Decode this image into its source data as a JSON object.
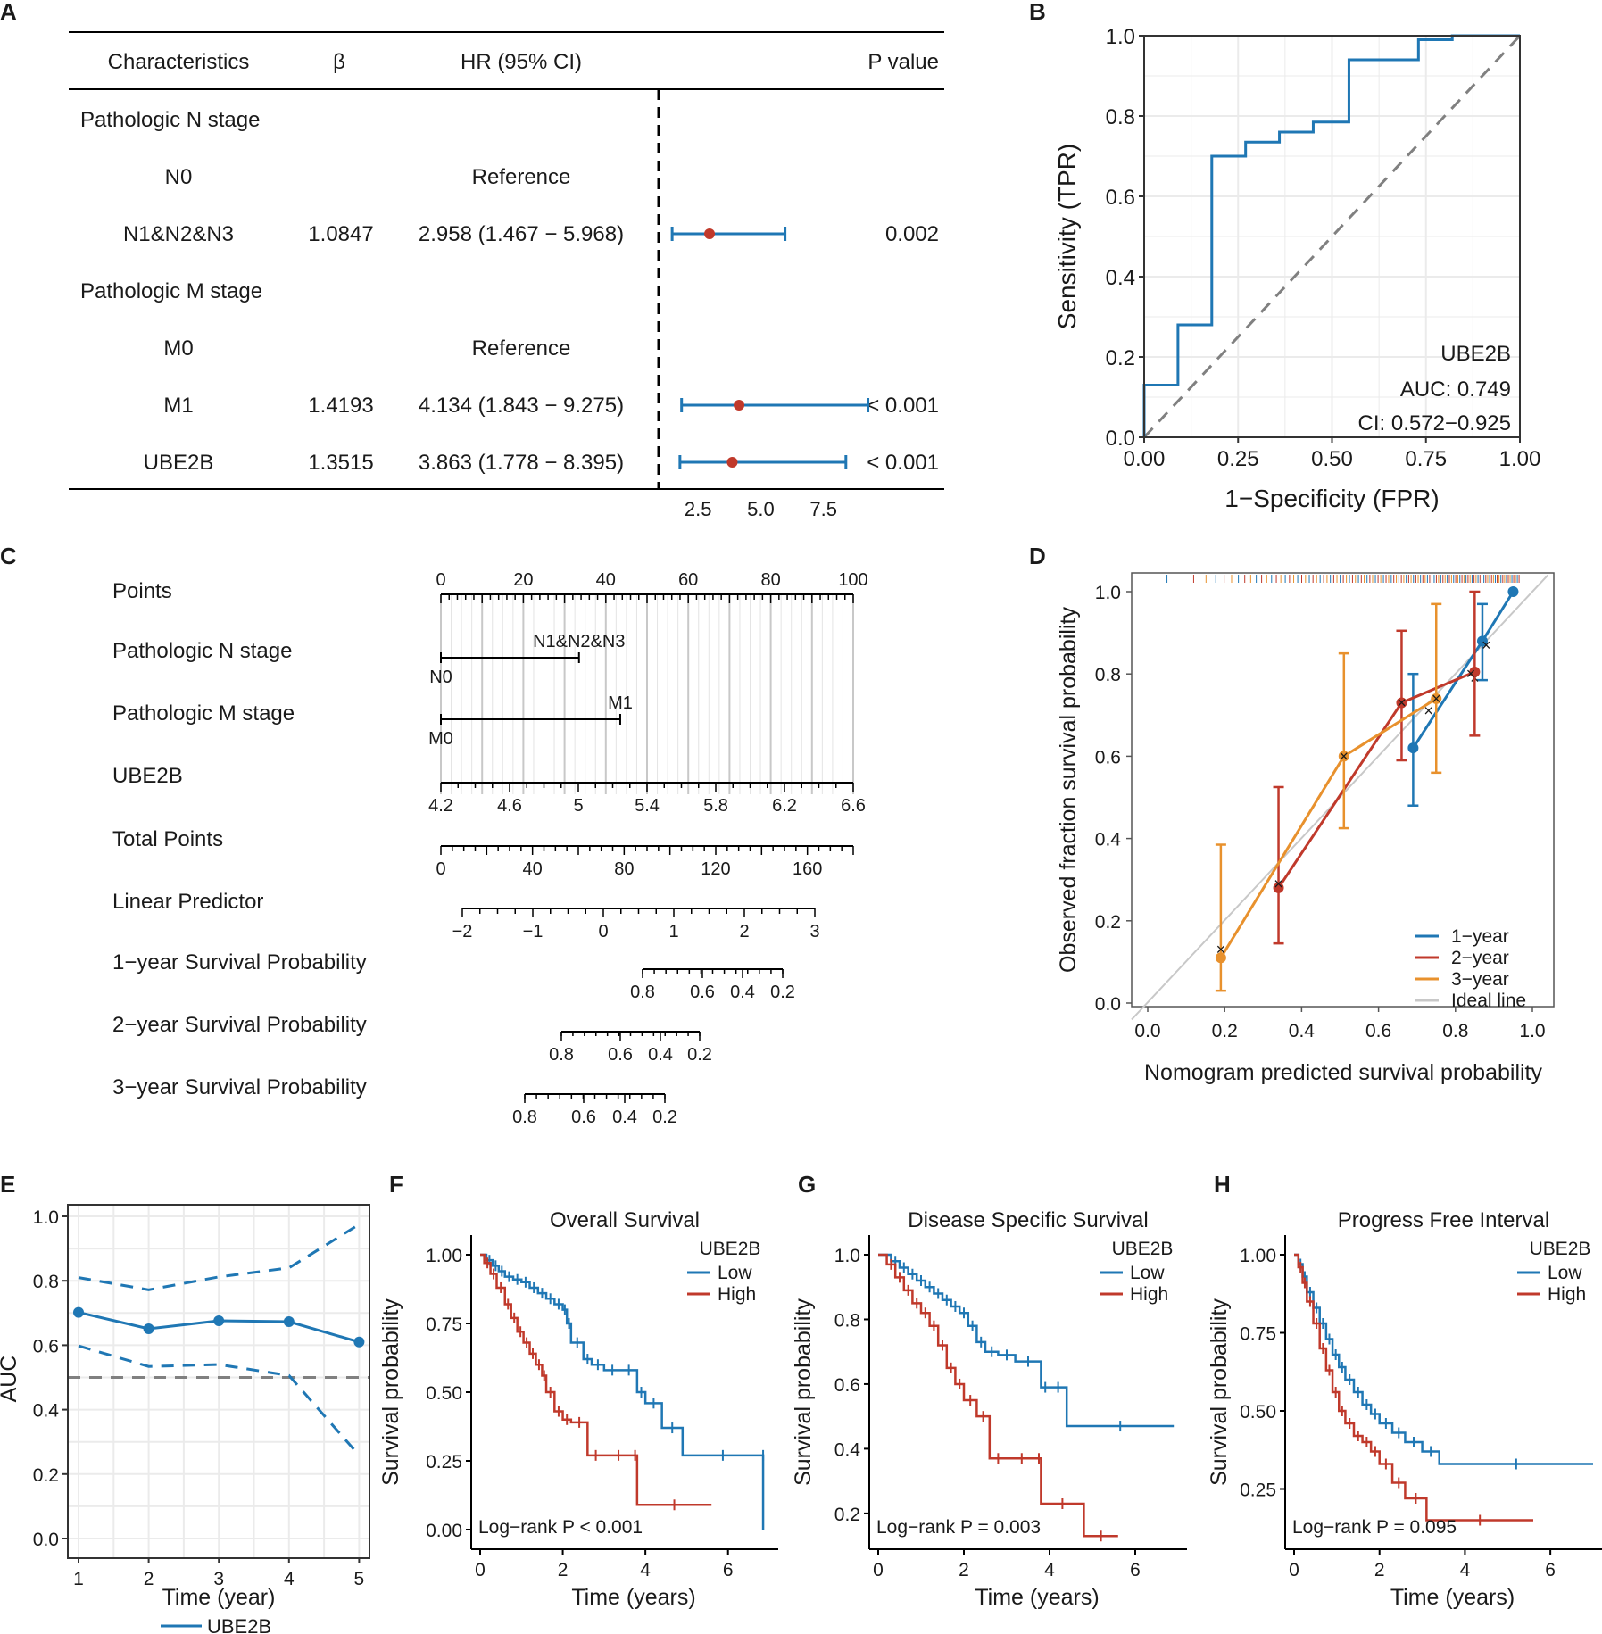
{
  "colors": {
    "blue": "#1f77b4",
    "red": "#c0392b",
    "orange": "#e8912d",
    "grey": "#808080",
    "ideal": "#c8c8c8",
    "grid": "#ebebeb"
  },
  "panels": {
    "a": "A",
    "b": "B",
    "c": "C",
    "d": "D",
    "e": "E",
    "f": "F",
    "g": "G",
    "h": "H"
  },
  "forest": {
    "headers": {
      "char": "Characteristics",
      "beta": "β",
      "hr": "HR (95% CI)",
      "p": "P value"
    },
    "rows": [
      {
        "label": "Pathologic N stage",
        "type": "group"
      },
      {
        "label": "N0",
        "type": "ref",
        "hr_text": "Reference"
      },
      {
        "label": "N1&N2&N3",
        "type": "est",
        "beta": "1.0847",
        "hr_text": "2.958 (1.467 − 5.968)",
        "p": "0.002",
        "hr": 2.958,
        "lo": 1.467,
        "hi": 5.968
      },
      {
        "label": "Pathologic M stage",
        "type": "group"
      },
      {
        "label": "M0",
        "type": "ref",
        "hr_text": "Reference"
      },
      {
        "label": "M1",
        "type": "est",
        "beta": "1.4193",
        "hr_text": "4.134 (1.843 − 9.275)",
        "p": "< 0.001",
        "hr": 4.134,
        "lo": 1.843,
        "hi": 9.275
      },
      {
        "label": "UBE2B",
        "type": "est",
        "beta": "1.3515",
        "hr_text": "3.863 (1.778 − 8.395)",
        "p": "< 0.001",
        "hr": 3.863,
        "lo": 1.778,
        "hi": 8.395
      }
    ],
    "ref_line": 1,
    "ticks": [
      "2.5",
      "5.0",
      "7.5"
    ],
    "tick_vals": [
      2.5,
      5.0,
      7.5
    ]
  },
  "chart_data": [
    {
      "panel": "B",
      "type": "line",
      "xlabel": "1−Specificity (FPR)",
      "ylabel": "Sensitivity (TPR)",
      "xlim": [
        0,
        1
      ],
      "ylim": [
        0,
        1
      ],
      "xticks": [
        "0.00",
        "0.25",
        "0.50",
        "0.75",
        "1.00"
      ],
      "yticks": [
        "0.0",
        "0.2",
        "0.4",
        "0.6",
        "0.8",
        "1.0"
      ],
      "roc": [
        [
          0,
          0
        ],
        [
          0,
          0.13
        ],
        [
          0.09,
          0.13
        ],
        [
          0.09,
          0.28
        ],
        [
          0.18,
          0.28
        ],
        [
          0.18,
          0.7
        ],
        [
          0.27,
          0.7
        ],
        [
          0.27,
          0.735
        ],
        [
          0.36,
          0.735
        ],
        [
          0.36,
          0.76
        ],
        [
          0.45,
          0.76
        ],
        [
          0.45,
          0.785
        ],
        [
          0.545,
          0.785
        ],
        [
          0.545,
          0.94
        ],
        [
          0.73,
          0.94
        ],
        [
          0.73,
          0.99
        ],
        [
          0.82,
          0.99
        ],
        [
          0.82,
          1.0
        ],
        [
          1,
          1
        ]
      ],
      "annotation": {
        "name": "UBE2B",
        "auc": "AUC: 0.749",
        "ci": "CI: 0.572−0.925"
      }
    },
    {
      "panel": "C",
      "type": "table",
      "name": "nomogram",
      "labels": [
        "Points",
        "Pathologic N stage",
        "Pathologic M stage",
        "UBE2B",
        "Total Points",
        "Linear Predictor",
        "1−year Survival Probability",
        "2−year Survival Probability",
        "3−year Survival Probability"
      ],
      "points_ticks": [
        "0",
        "20",
        "40",
        "60",
        "80",
        "100"
      ],
      "n_stage": {
        "low": "N0",
        "high": "N1&N2&N3",
        "points": 33.5
      },
      "m_stage": {
        "low": "M0",
        "high": "M1",
        "points": 43.5
      },
      "ube2b_ticks": [
        "4.2",
        "4.6",
        "5",
        "5.4",
        "5.8",
        "6.2",
        "6.6"
      ],
      "total_ticks": [
        "0",
        "40",
        "80",
        "120",
        "160"
      ],
      "lp_ticks": [
        "−2",
        "−1",
        "0",
        "1",
        "2",
        "3"
      ],
      "surv1": [
        "0.8",
        "0.6",
        "0.4",
        "0.2"
      ],
      "surv2": [
        "0.8",
        "0.6",
        "0.4",
        "0.2"
      ],
      "surv3": [
        "0.8",
        "0.6",
        "0.4",
        "0.2"
      ]
    },
    {
      "panel": "D",
      "type": "line",
      "xlabel": "Nomogram predicted survival probability",
      "ylabel": "Observed fraction survival probability",
      "xlim": [
        0,
        1
      ],
      "ylim": [
        0,
        1
      ],
      "xticks": [
        "0.0",
        "0.2",
        "0.4",
        "0.6",
        "0.8",
        "1.0"
      ],
      "yticks": [
        "0.0",
        "0.2",
        "0.4",
        "0.6",
        "0.8",
        "1.0"
      ],
      "series": [
        {
          "name": "1−year",
          "color": "blue",
          "x": [
            0.69,
            0.87,
            0.95
          ],
          "y": [
            0.62,
            0.88,
            1.0
          ],
          "lo": [
            0.48,
            0.785,
            1.0
          ],
          "hi": [
            0.8,
            0.97,
            1.0
          ],
          "xpred": [
            0.73,
            0.85,
            0.88
          ],
          "ypred": [
            0.71,
            0.79,
            0.87
          ]
        },
        {
          "name": "2−year",
          "color": "red",
          "x": [
            0.34,
            0.66,
            0.85
          ],
          "y": [
            0.28,
            0.73,
            0.805
          ],
          "lo": [
            0.145,
            0.59,
            0.65
          ],
          "hi": [
            0.525,
            0.905,
            1.0
          ],
          "xpred": [
            0.34,
            0.66,
            0.84
          ],
          "ypred": [
            0.29,
            0.73,
            0.8
          ]
        },
        {
          "name": "3−year",
          "color": "orange",
          "x": [
            0.19,
            0.51,
            0.75
          ],
          "y": [
            0.11,
            0.6,
            0.74
          ],
          "lo": [
            0.03,
            0.425,
            0.56
          ],
          "hi": [
            0.385,
            0.85,
            0.97
          ],
          "xpred": [
            0.19,
            0.51,
            0.75
          ],
          "ypred": [
            0.13,
            0.6,
            0.74
          ]
        }
      ],
      "legend": [
        "1−year",
        "2−year",
        "3−year",
        "Ideal line"
      ]
    },
    {
      "panel": "E",
      "type": "line",
      "xlabel": "Time (year)",
      "ylabel": "AUC",
      "x": [
        1,
        2,
        3,
        4,
        5
      ],
      "auc": [
        0.702,
        0.651,
        0.676,
        0.673,
        0.61
      ],
      "lower": [
        0.598,
        0.534,
        0.54,
        0.506,
        0.258
      ],
      "upper": [
        0.81,
        0.772,
        0.812,
        0.84,
        0.975
      ],
      "xticks": [
        "1",
        "2",
        "3",
        "4",
        "5"
      ],
      "yticks": [
        "0.0",
        "0.2",
        "0.4",
        "0.6",
        "0.8",
        "1.0"
      ],
      "ylim": [
        0,
        1
      ],
      "ref": 0.5,
      "legend": "UBE2B"
    },
    {
      "panel": "F",
      "type": "line",
      "title": "Overall Survival",
      "xlabel": "Time (years)",
      "ylabel": "Survival probability",
      "xlim": [
        0,
        7
      ],
      "ylim": [
        0,
        1
      ],
      "xticks": [
        "0",
        "2",
        "4",
        "6"
      ],
      "yticks": [
        "0.00",
        "0.25",
        "0.50",
        "0.75",
        "1.00"
      ],
      "ytick_vals": [
        0,
        0.25,
        0.5,
        0.75,
        1.0
      ],
      "legend_title": "UBE2B",
      "groups": [
        "Low",
        "High"
      ],
      "pvalue": "Log−rank P < 0.001",
      "low": {
        "t": [
          0,
          0.15,
          0.3,
          0.45,
          0.6,
          0.8,
          1.0,
          1.2,
          1.4,
          1.6,
          1.8,
          2.0,
          2.1,
          2.2,
          2.5,
          2.7,
          3.0,
          3.4,
          3.8,
          4.0,
          4.4,
          4.9,
          6.85,
          6.85
        ],
        "s": [
          1,
          0.98,
          0.96,
          0.94,
          0.92,
          0.91,
          0.9,
          0.88,
          0.86,
          0.84,
          0.82,
          0.8,
          0.75,
          0.68,
          0.62,
          0.6,
          0.58,
          0.58,
          0.5,
          0.46,
          0.37,
          0.27,
          0.27,
          0.0
        ]
      },
      "high": {
        "t": [
          0,
          0.1,
          0.25,
          0.4,
          0.6,
          0.75,
          0.9,
          1.05,
          1.2,
          1.35,
          1.5,
          1.6,
          1.8,
          2.0,
          2.2,
          2.6,
          3.0,
          3.7,
          3.8,
          5.6
        ],
        "s": [
          1,
          0.97,
          0.93,
          0.88,
          0.82,
          0.77,
          0.72,
          0.68,
          0.64,
          0.6,
          0.56,
          0.5,
          0.43,
          0.4,
          0.39,
          0.27,
          0.27,
          0.27,
          0.09,
          0.09
        ]
      }
    },
    {
      "panel": "G",
      "type": "line",
      "title": "Disease Specific Survival",
      "xlabel": "Time (years)",
      "ylabel": "Survival probability",
      "xlim": [
        0,
        7
      ],
      "ylim": [
        0.15,
        1
      ],
      "xticks": [
        "0",
        "2",
        "4",
        "6"
      ],
      "yticks": [
        "0.2",
        "0.4",
        "0.6",
        "0.8",
        "1.0"
      ],
      "ytick_vals": [
        0.2,
        0.4,
        0.6,
        0.8,
        1.0
      ],
      "legend_title": "UBE2B",
      "groups": [
        "Low",
        "High"
      ],
      "pvalue": "Log−rank P = 0.003",
      "low": {
        "t": [
          0,
          0.3,
          0.5,
          0.7,
          0.9,
          1.1,
          1.3,
          1.5,
          1.7,
          1.9,
          2.1,
          2.3,
          2.5,
          2.8,
          3.2,
          3.8,
          4.0,
          4.4,
          6.9
        ],
        "s": [
          1,
          0.98,
          0.96,
          0.94,
          0.92,
          0.9,
          0.88,
          0.86,
          0.84,
          0.82,
          0.78,
          0.73,
          0.7,
          0.69,
          0.67,
          0.59,
          0.59,
          0.47,
          0.47
        ]
      },
      "high": {
        "t": [
          0,
          0.2,
          0.4,
          0.6,
          0.8,
          1.0,
          1.2,
          1.4,
          1.6,
          1.8,
          2.0,
          2.3,
          2.6,
          3.0,
          3.7,
          3.8,
          4.8,
          5.6
        ],
        "s": [
          1,
          0.97,
          0.93,
          0.89,
          0.85,
          0.82,
          0.78,
          0.72,
          0.65,
          0.6,
          0.55,
          0.5,
          0.37,
          0.37,
          0.37,
          0.23,
          0.13,
          0.13
        ]
      }
    },
    {
      "panel": "H",
      "type": "line",
      "title": "Progress Free Interval",
      "xlabel": "Time (years)",
      "ylabel": "Survival probability",
      "xlim": [
        0,
        7
      ],
      "ylim": [
        0.12,
        1
      ],
      "xticks": [
        "0",
        "2",
        "4",
        "6"
      ],
      "yticks": [
        "0.25",
        "0.50",
        "0.75",
        "1.00"
      ],
      "ytick_vals": [
        0.25,
        0.5,
        0.75,
        1.0
      ],
      "legend_title": "UBE2B",
      "groups": [
        "Low",
        "High"
      ],
      "pvalue": "Log−rank P = 0.095",
      "low": {
        "t": [
          0,
          0.1,
          0.2,
          0.3,
          0.45,
          0.6,
          0.75,
          0.9,
          1.05,
          1.2,
          1.4,
          1.6,
          1.8,
          2.0,
          2.3,
          2.6,
          3.0,
          3.4,
          7.0
        ],
        "s": [
          1,
          0.97,
          0.93,
          0.88,
          0.83,
          0.78,
          0.73,
          0.68,
          0.64,
          0.6,
          0.56,
          0.52,
          0.49,
          0.46,
          0.43,
          0.4,
          0.37,
          0.33,
          0.33
        ]
      },
      "high": {
        "t": [
          0,
          0.1,
          0.2,
          0.3,
          0.45,
          0.6,
          0.75,
          0.9,
          1.05,
          1.2,
          1.4,
          1.6,
          1.8,
          2.0,
          2.3,
          2.6,
          3.1,
          5.6
        ],
        "s": [
          1,
          0.96,
          0.91,
          0.85,
          0.78,
          0.7,
          0.63,
          0.56,
          0.5,
          0.46,
          0.42,
          0.4,
          0.37,
          0.33,
          0.27,
          0.22,
          0.15,
          0.15
        ]
      }
    }
  ]
}
